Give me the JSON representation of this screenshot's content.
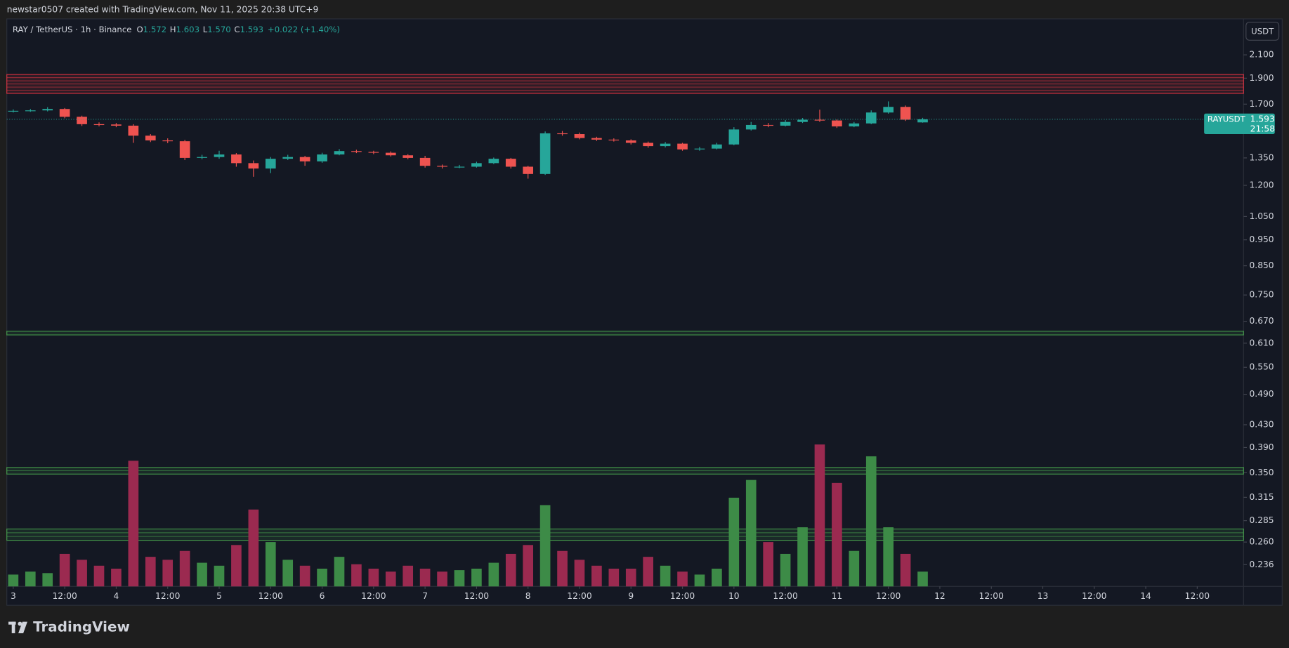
{
  "credit": "newstar0507 created with TradingView.com, Nov 11, 2025 20:38 UTC+9",
  "brand": "TradingView",
  "chart_data": {
    "type": "candlestick",
    "header": {
      "symbol": "RAY / TetherUS · 1h · Binance",
      "o_label": "O",
      "o": "1.572",
      "h_label": "H",
      "h": "1.603",
      "l_label": "L",
      "l": "1.570",
      "c_label": "C",
      "c": "1.593",
      "change": "+0.022 (+1.40%)"
    },
    "currency": "USDT",
    "price_tag": {
      "symbol": "RAYUSDT",
      "countdown": "21:58"
    },
    "log_scale": true,
    "up_color": "#26a69a",
    "down_color": "#ef5350",
    "volume_up_color": "#3d8b47",
    "volume_down_color": "#9b2a50",
    "ylim": [
      0.215,
      2.45
    ],
    "yticks": [
      {
        "value": 2.1,
        "label": "2.100"
      },
      {
        "value": 1.9,
        "label": "1.900"
      },
      {
        "value": 1.7,
        "label": "1.700"
      },
      {
        "value": 1.35,
        "label": "1.350"
      },
      {
        "value": 1.2,
        "label": "1.200"
      },
      {
        "value": 1.05,
        "label": "1.050"
      },
      {
        "value": 0.95,
        "label": "0.950"
      },
      {
        "value": 0.85,
        "label": "0.850"
      },
      {
        "value": 0.75,
        "label": "0.750"
      },
      {
        "value": 0.67,
        "label": "0.670"
      },
      {
        "value": 0.61,
        "label": "0.610"
      },
      {
        "value": 0.55,
        "label": "0.550"
      },
      {
        "value": 0.49,
        "label": "0.490"
      },
      {
        "value": 0.43,
        "label": "0.430"
      },
      {
        "value": 0.39,
        "label": "0.390"
      },
      {
        "value": 0.35,
        "label": "0.350"
      },
      {
        "value": 0.315,
        "label": "0.315"
      },
      {
        "value": 0.285,
        "label": "0.285"
      },
      {
        "value": 0.26,
        "label": "0.260"
      },
      {
        "value": 0.236,
        "label": "0.236"
      }
    ],
    "xlim": [
      -1.5,
      286.8
    ],
    "xticks": [
      {
        "value": 0,
        "label": "3"
      },
      {
        "value": 12,
        "label": "12:00"
      },
      {
        "value": 24,
        "label": "4"
      },
      {
        "value": 36,
        "label": "12:00"
      },
      {
        "value": 48,
        "label": "5"
      },
      {
        "value": 60,
        "label": "12:00"
      },
      {
        "value": 72,
        "label": "6"
      },
      {
        "value": 84,
        "label": "12:00"
      },
      {
        "value": 96,
        "label": "7"
      },
      {
        "value": 108,
        "label": "12:00"
      },
      {
        "value": 120,
        "label": "8"
      },
      {
        "value": 132,
        "label": "12:00"
      },
      {
        "value": 144,
        "label": "9"
      },
      {
        "value": 156,
        "label": "12:00"
      },
      {
        "value": 168,
        "label": "10"
      },
      {
        "value": 180,
        "label": "12:00"
      },
      {
        "value": 192,
        "label": "11"
      },
      {
        "value": 204,
        "label": "12:00"
      },
      {
        "value": 216,
        "label": "12"
      },
      {
        "value": 228,
        "label": "12:00"
      },
      {
        "value": 240,
        "label": "13"
      },
      {
        "value": 252,
        "label": "12:00"
      },
      {
        "value": 264,
        "label": "14"
      },
      {
        "value": 276,
        "label": "12:00"
      }
    ],
    "vlim": [
      0,
      100
    ],
    "zones": [
      {
        "low": 1.78,
        "high": 1.93,
        "color": "#f23645"
      },
      {
        "low": 0.632,
        "high": 0.642,
        "color": "#4caf50"
      },
      {
        "low": 0.348,
        "high": 0.358,
        "color": "#4caf50"
      },
      {
        "low": 0.262,
        "high": 0.275,
        "color": "#4caf50"
      }
    ],
    "x": [
      0,
      4,
      8,
      12,
      16,
      20,
      24,
      28,
      32,
      36,
      40,
      44,
      48,
      52,
      56,
      60,
      64,
      68,
      72,
      76,
      80,
      84,
      88,
      92,
      96,
      100,
      104,
      108,
      112,
      116,
      120,
      124,
      128,
      132,
      136,
      140,
      144,
      148,
      152,
      156,
      160,
      164,
      168,
      172,
      176,
      180,
      184,
      188,
      192,
      196,
      200,
      204,
      208,
      212
    ],
    "open": [
      1.648,
      1.652,
      1.655,
      1.665,
      1.61,
      1.56,
      1.558,
      1.55,
      1.485,
      1.455,
      1.45,
      1.35,
      1.355,
      1.37,
      1.32,
      1.29,
      1.345,
      1.355,
      1.33,
      1.37,
      1.39,
      1.385,
      1.38,
      1.365,
      1.35,
      1.305,
      1.3,
      1.3,
      1.32,
      1.345,
      1.3,
      1.26,
      1.5,
      1.495,
      1.47,
      1.46,
      1.455,
      1.44,
      1.42,
      1.435,
      1.4,
      1.405,
      1.43,
      1.525,
      1.555,
      1.55,
      1.575,
      1.59,
      1.585,
      1.545,
      1.565,
      1.64,
      1.68,
      1.572
    ],
    "high": [
      1.662,
      1.665,
      1.678,
      1.672,
      1.618,
      1.572,
      1.568,
      1.56,
      1.495,
      1.468,
      1.458,
      1.368,
      1.392,
      1.378,
      1.335,
      1.355,
      1.368,
      1.362,
      1.38,
      1.402,
      1.398,
      1.392,
      1.388,
      1.372,
      1.362,
      1.312,
      1.31,
      1.328,
      1.352,
      1.35,
      1.305,
      1.512,
      1.515,
      1.505,
      1.478,
      1.468,
      1.462,
      1.448,
      1.445,
      1.44,
      1.415,
      1.44,
      1.54,
      1.575,
      1.568,
      1.588,
      1.602,
      1.66,
      1.592,
      1.575,
      1.655,
      1.72,
      1.69,
      1.603
    ],
    "low": [
      1.64,
      1.645,
      1.648,
      1.6,
      1.548,
      1.545,
      1.54,
      1.44,
      1.445,
      1.438,
      1.338,
      1.342,
      1.345,
      1.3,
      1.245,
      1.265,
      1.338,
      1.305,
      1.322,
      1.365,
      1.378,
      1.372,
      1.358,
      1.342,
      1.295,
      1.29,
      1.292,
      1.295,
      1.315,
      1.29,
      1.235,
      1.255,
      1.485,
      1.462,
      1.452,
      1.448,
      1.43,
      1.41,
      1.412,
      1.392,
      1.392,
      1.4,
      1.425,
      1.518,
      1.54,
      1.545,
      1.568,
      1.575,
      1.535,
      1.54,
      1.56,
      1.632,
      1.582,
      1.57
    ],
    "close": [
      1.652,
      1.655,
      1.665,
      1.61,
      1.56,
      1.558,
      1.55,
      1.485,
      1.455,
      1.45,
      1.35,
      1.355,
      1.37,
      1.32,
      1.29,
      1.345,
      1.355,
      1.33,
      1.37,
      1.39,
      1.385,
      1.38,
      1.365,
      1.35,
      1.305,
      1.3,
      1.3,
      1.32,
      1.345,
      1.3,
      1.26,
      1.5,
      1.495,
      1.47,
      1.46,
      1.455,
      1.44,
      1.42,
      1.435,
      1.4,
      1.405,
      1.43,
      1.525,
      1.555,
      1.55,
      1.575,
      1.59,
      1.585,
      1.545,
      1.565,
      1.64,
      1.68,
      1.59,
      1.593
    ],
    "volume": [
      8,
      10,
      9,
      22,
      18,
      14,
      12,
      85,
      20,
      18,
      24,
      16,
      14,
      28,
      52,
      30,
      18,
      14,
      12,
      20,
      15,
      12,
      10,
      14,
      12,
      10,
      11,
      12,
      16,
      22,
      28,
      55,
      24,
      18,
      14,
      12,
      12,
      20,
      14,
      10,
      8,
      12,
      60,
      72,
      30,
      22,
      40,
      96,
      70,
      24,
      88,
      40,
      22,
      10
    ]
  }
}
